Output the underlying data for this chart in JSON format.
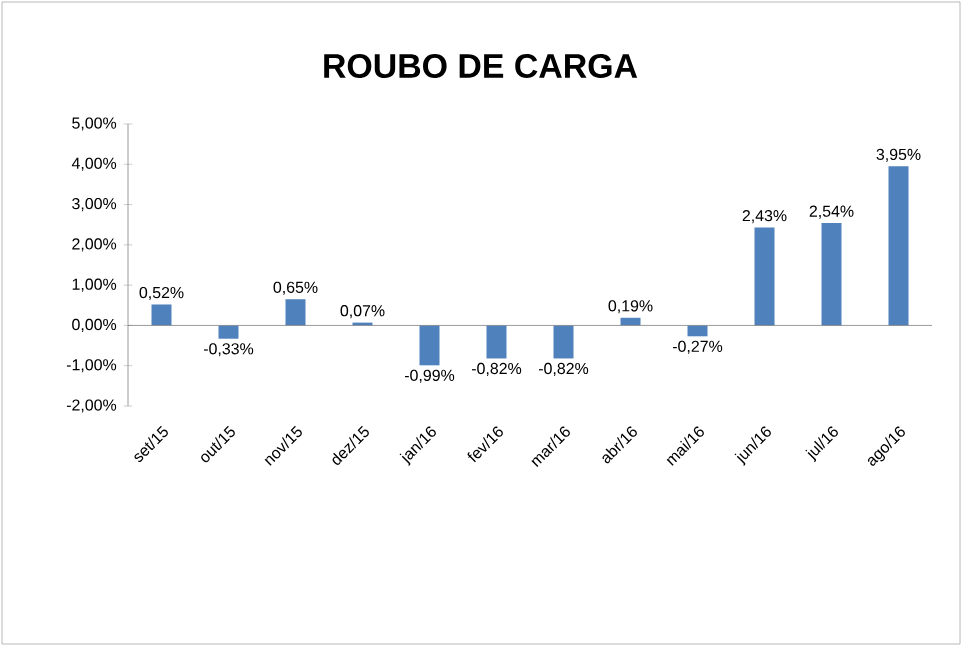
{
  "chart_data": {
    "type": "bar",
    "title": "ROUBO DE CARGA",
    "categories": [
      "set/15",
      "out/15",
      "nov/15",
      "dez/15",
      "jan/16",
      "fev/16",
      "mar/16",
      "abr/16",
      "mai/16",
      "jun/16",
      "jul/16",
      "ago/16"
    ],
    "values": [
      0.52,
      -0.33,
      0.65,
      0.07,
      -0.99,
      -0.82,
      -0.82,
      0.19,
      -0.27,
      2.43,
      2.54,
      3.95
    ],
    "value_labels": [
      "0,52%",
      "-0,33%",
      "0,65%",
      "0,07%",
      "-0,99%",
      "-0,82%",
      "-0,82%",
      "0,19%",
      "-0,27%",
      "2,43%",
      "2,54%",
      "3,95%"
    ],
    "color": "#4f81bd",
    "ylim": [
      -2,
      5
    ],
    "yticks": [
      {
        "value": -2,
        "label": "-2,00%"
      },
      {
        "value": -1,
        "label": "-1,00%"
      },
      {
        "value": 0,
        "label": "0,00%"
      },
      {
        "value": 1,
        "label": "1,00%"
      },
      {
        "value": 2,
        "label": "2,00%"
      },
      {
        "value": 3,
        "label": "3,00%"
      },
      {
        "value": 4,
        "label": "4,00%"
      },
      {
        "value": 5,
        "label": "5,00%"
      }
    ]
  }
}
